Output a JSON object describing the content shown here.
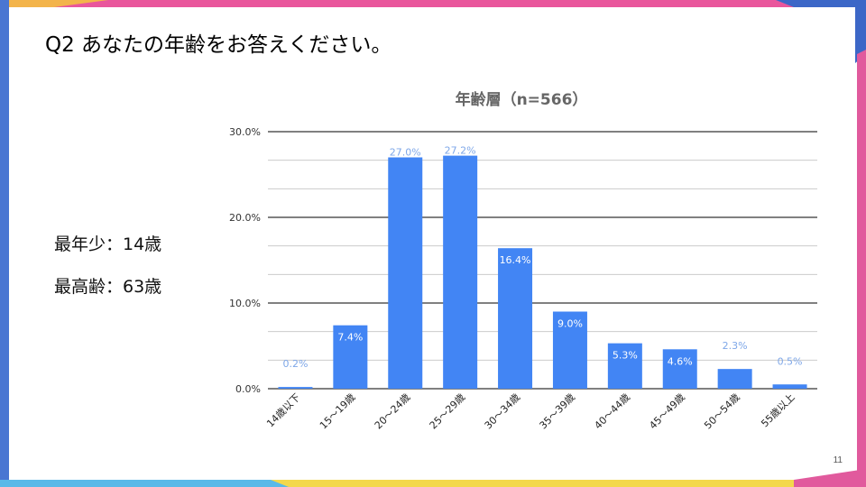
{
  "slide": {
    "title": "Q2 あなたの年齢をお答えください。",
    "stats": [
      "最年少：14歳",
      "最高齢：63歳"
    ],
    "page_number": "11"
  },
  "colors": {
    "bar": "#4285f4",
    "label_light": "#7ea7e8",
    "gridline": "#000000",
    "minor_gridline": "#cccccc"
  },
  "chart_data": {
    "type": "bar",
    "title": "年齢層（n=566）",
    "categories": [
      "14歳以下",
      "15～19歳",
      "20～24歳",
      "25～29歳",
      "30～34歳",
      "35～39歳",
      "40～44歳",
      "45～49歳",
      "50～54歳",
      "55歳以上"
    ],
    "values": [
      0.2,
      7.4,
      27.0,
      27.2,
      16.4,
      9.0,
      5.3,
      4.6,
      2.3,
      0.5
    ],
    "data_labels": [
      "0.2%",
      "7.4%",
      "27.0%",
      "27.2%",
      "16.4%",
      "9.0%",
      "5.3%",
      "4.6%",
      "2.3%",
      "0.5%"
    ],
    "ylim": [
      0,
      30
    ],
    "yticks": [
      0,
      10,
      20,
      30
    ],
    "ytick_labels": [
      "0.0%",
      "10.0%",
      "20.0%",
      "30.0%"
    ],
    "xlabel": "",
    "ylabel": "",
    "grid": true,
    "legend": false
  }
}
